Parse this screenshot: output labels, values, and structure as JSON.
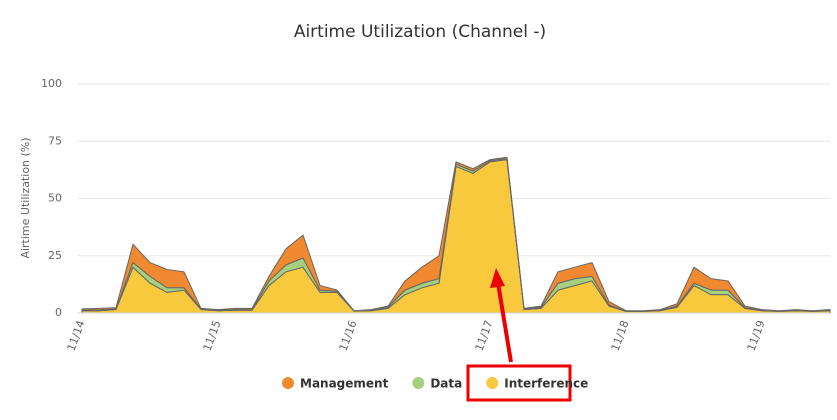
{
  "chart_data": {
    "type": "stacked-area",
    "title": "Airtime Utilization (Channel -)",
    "y_label": "Airtime Utilization (%)",
    "categories": [
      "11/14",
      null,
      null,
      null,
      null,
      null,
      null,
      null,
      "11/15",
      null,
      null,
      null,
      null,
      null,
      null,
      null,
      "11/16",
      null,
      null,
      null,
      null,
      null,
      null,
      null,
      "11/17",
      null,
      null,
      null,
      null,
      null,
      null,
      null,
      "11/18",
      null,
      null,
      null,
      null,
      null,
      null,
      null,
      "11/19",
      null,
      null,
      null,
      null
    ],
    "series": [
      {
        "name": "Management",
        "color": "#f0892f",
        "values": [
          0.5,
          0.7,
          0.5,
          8,
          6,
          8,
          7,
          0.3,
          0.3,
          0.5,
          0.5,
          2,
          7,
          10,
          2,
          0.5,
          0.1,
          0.3,
          0.5,
          4,
          7,
          10,
          1,
          1,
          0.5,
          0.5,
          0.3,
          0.5,
          5,
          5,
          6,
          1.5,
          0.2,
          0.2,
          0.3,
          1,
          7,
          5,
          4,
          0.7,
          0.3,
          0.2,
          0.3,
          0.2,
          0.3
        ]
      },
      {
        "name": "Data",
        "color": "#a6d07f",
        "values": [
          0.3,
          0.3,
          0.3,
          2,
          3,
          2,
          1,
          0.2,
          0.2,
          0.3,
          0.3,
          2,
          3,
          4,
          1,
          0.5,
          0.1,
          0.2,
          0.5,
          2,
          2,
          2,
          1,
          1,
          0.5,
          0.5,
          0.2,
          0.5,
          3,
          3,
          2,
          0.5,
          0.1,
          0.1,
          0.2,
          0.5,
          1,
          2,
          2,
          0.3,
          0.2,
          0.1,
          0.2,
          0.1,
          0.2
        ]
      },
      {
        "name": "Interference",
        "color": "#f8c93c",
        "values": [
          1,
          1,
          1.5,
          20,
          13,
          9,
          10,
          1.5,
          1,
          1.2,
          1.2,
          12,
          18,
          20,
          9,
          9,
          0.8,
          1,
          2,
          8,
          11,
          13,
          64,
          61,
          66,
          67,
          1.5,
          2,
          10,
          12,
          14,
          3,
          0.7,
          0.7,
          1,
          2.5,
          12,
          8,
          8,
          2,
          1,
          0.7,
          1,
          0.7,
          1
        ]
      }
    ],
    "ylim": [
      0,
      100
    ],
    "yticks": [
      0,
      25,
      50,
      75,
      100
    ],
    "grid": true
  }
}
